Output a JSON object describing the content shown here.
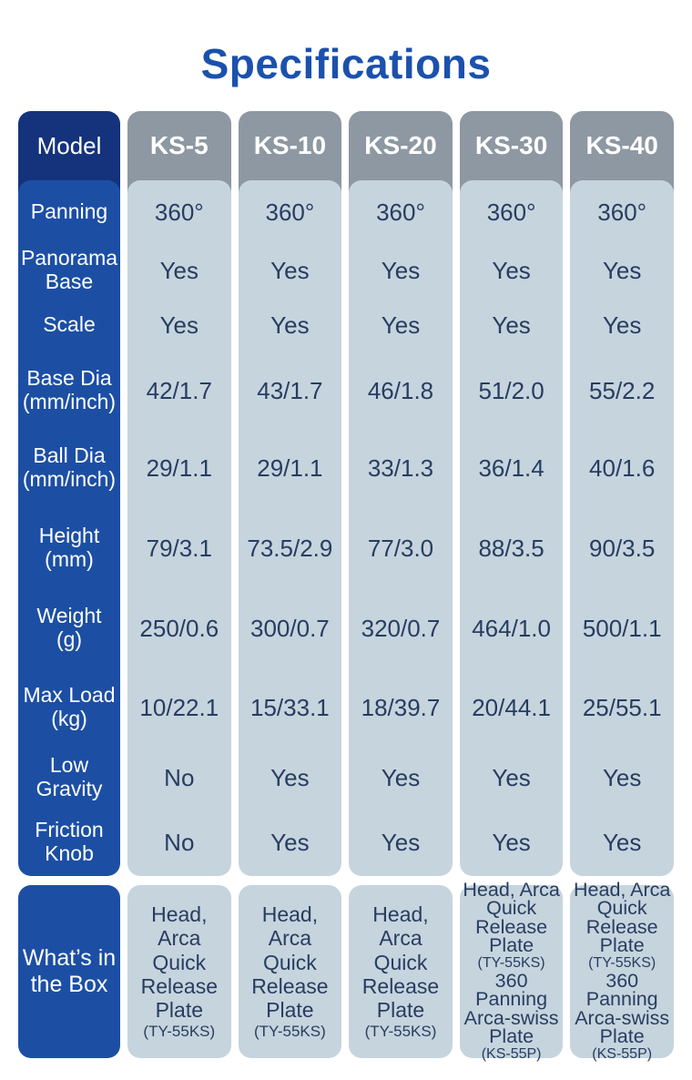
{
  "title": "Specifications",
  "colors": {
    "title_text": "#1b51ad",
    "model_header_bg": "#14337c",
    "label_column_bg": "#1c4fa4",
    "column_header_bg": "#8d98a2",
    "cell_bg": "#c6d4de",
    "cell_text": "#273d60",
    "header_text": "#ffffff"
  },
  "table": {
    "corner_label": "Model",
    "columns": [
      "KS-5",
      "KS-10",
      "KS-20",
      "KS-30",
      "KS-40"
    ],
    "rows": [
      {
        "label": [
          "Panning"
        ],
        "values": [
          "360°",
          "360°",
          "360°",
          "360°",
          "360°"
        ]
      },
      {
        "label": [
          "Panorama",
          "Base"
        ],
        "values": [
          "Yes",
          "Yes",
          "Yes",
          "Yes",
          "Yes"
        ]
      },
      {
        "label": [
          "Scale"
        ],
        "values": [
          "Yes",
          "Yes",
          "Yes",
          "Yes",
          "Yes"
        ]
      },
      {
        "label": [
          "Base Dia",
          "(mm/inch)"
        ],
        "values": [
          "42/1.7",
          "43/1.7",
          "46/1.8",
          "51/2.0",
          "55/2.2"
        ]
      },
      {
        "label": [
          "Ball Dia",
          "(mm/inch)"
        ],
        "values": [
          "29/1.1",
          "29/1.1",
          "33/1.3",
          "36/1.4",
          "40/1.6"
        ]
      },
      {
        "label": [
          "Height",
          "(mm)"
        ],
        "values": [
          "79/3.1",
          "73.5/2.9",
          "77/3.0",
          "88/3.5",
          "90/3.5"
        ]
      },
      {
        "label": [
          "Weight",
          "(g)"
        ],
        "values": [
          "250/0.6",
          "300/0.7",
          "320/0.7",
          "464/1.0",
          "500/1.1"
        ]
      },
      {
        "label": [
          "Max Load",
          "(kg)"
        ],
        "values": [
          "10/22.1",
          "15/33.1",
          "18/39.7",
          "20/44.1",
          "25/55.1"
        ]
      },
      {
        "label": [
          "Low",
          "Gravity"
        ],
        "values": [
          "No",
          "Yes",
          "Yes",
          "Yes",
          "Yes"
        ]
      },
      {
        "label": [
          "Friction",
          "Knob"
        ],
        "values": [
          "No",
          "Yes",
          "Yes",
          "Yes",
          "Yes"
        ]
      }
    ],
    "whats_in_box": {
      "label": [
        "What’s in",
        "the Box"
      ],
      "values": [
        {
          "lines": [
            {
              "text": "Head, Arca",
              "small": false
            },
            {
              "text": "Quick",
              "small": false
            },
            {
              "text": "Release Plate",
              "small": false
            },
            {
              "text": "(TY-55KS)",
              "small": true
            }
          ]
        },
        {
          "lines": [
            {
              "text": "Head, Arca",
              "small": false
            },
            {
              "text": "Quick",
              "small": false
            },
            {
              "text": "Release Plate",
              "small": false
            },
            {
              "text": "(TY-55KS)",
              "small": true
            }
          ]
        },
        {
          "lines": [
            {
              "text": "Head, Arca",
              "small": false
            },
            {
              "text": "Quick",
              "small": false
            },
            {
              "text": "Release Plate",
              "small": false
            },
            {
              "text": "(TY-55KS)",
              "small": true
            }
          ]
        },
        {
          "lines": [
            {
              "text": "Head, Arca",
              "small": false
            },
            {
              "text": "Quick",
              "small": false
            },
            {
              "text": "Release Plate",
              "small": false
            },
            {
              "text": "(TY-55KS)",
              "small": true
            },
            {
              "text": "360",
              "small": false
            },
            {
              "text": "Panning",
              "small": false
            },
            {
              "text": "Arca-swiss",
              "small": false
            },
            {
              "text": "Plate",
              "small": false
            },
            {
              "text": "(KS-55P)",
              "small": true
            }
          ]
        },
        {
          "lines": [
            {
              "text": "Head, Arca",
              "small": false
            },
            {
              "text": "Quick",
              "small": false
            },
            {
              "text": "Release Plate",
              "small": false
            },
            {
              "text": "(TY-55KS)",
              "small": true
            },
            {
              "text": "360",
              "small": false
            },
            {
              "text": "Panning",
              "small": false
            },
            {
              "text": "Arca-swiss",
              "small": false
            },
            {
              "text": "Plate",
              "small": false
            },
            {
              "text": "(KS-55P)",
              "small": true
            }
          ]
        }
      ]
    }
  }
}
